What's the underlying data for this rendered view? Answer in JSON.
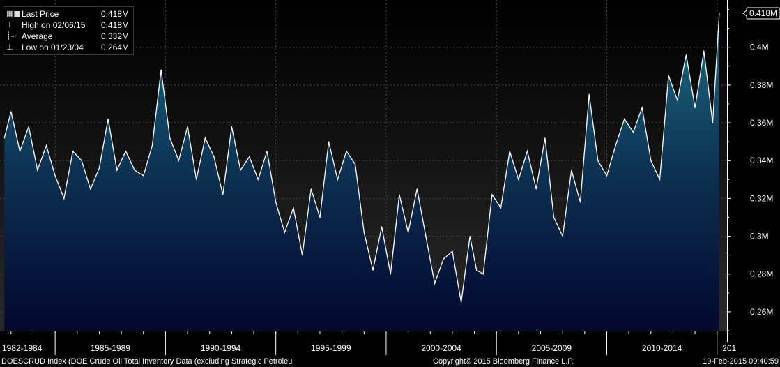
{
  "chart_data": {
    "type": "area",
    "series": [
      {
        "name": "Last Price",
        "x": [
          1982.7,
          1983.0,
          1983.4,
          1983.8,
          1984.2,
          1984.6,
          1985.0,
          1985.4,
          1985.8,
          1986.2,
          1986.6,
          1987.0,
          1987.4,
          1987.8,
          1988.2,
          1988.6,
          1989.0,
          1989.4,
          1989.8,
          1990.2,
          1990.6,
          1991.0,
          1991.4,
          1991.8,
          1992.2,
          1992.6,
          1993.0,
          1993.4,
          1993.8,
          1994.2,
          1994.6,
          1995.0,
          1995.4,
          1995.8,
          1996.2,
          1996.6,
          1997.0,
          1997.4,
          1997.8,
          1998.2,
          1998.6,
          1999.0,
          1999.4,
          1999.8,
          2000.2,
          2000.6,
          2001.0,
          2001.4,
          2001.8,
          2002.2,
          2002.6,
          2003.0,
          2003.4,
          2003.8,
          2004.1,
          2004.4,
          2004.8,
          2005.2,
          2005.6,
          2006.0,
          2006.4,
          2006.8,
          2007.2,
          2007.6,
          2008.0,
          2008.4,
          2008.8,
          2009.2,
          2009.6,
          2010.0,
          2010.4,
          2010.8,
          2011.2,
          2011.6,
          2012.0,
          2012.4,
          2012.8,
          2013.2,
          2013.6,
          2014.0,
          2014.4,
          2014.8,
          2015.1
        ],
        "values": [
          0.352,
          0.366,
          0.345,
          0.358,
          0.335,
          0.348,
          0.332,
          0.32,
          0.345,
          0.34,
          0.325,
          0.336,
          0.362,
          0.335,
          0.345,
          0.335,
          0.332,
          0.348,
          0.388,
          0.352,
          0.34,
          0.358,
          0.33,
          0.352,
          0.342,
          0.322,
          0.358,
          0.335,
          0.342,
          0.33,
          0.345,
          0.318,
          0.302,
          0.315,
          0.29,
          0.325,
          0.31,
          0.35,
          0.33,
          0.345,
          0.338,
          0.302,
          0.282,
          0.305,
          0.28,
          0.322,
          0.302,
          0.325,
          0.3,
          0.275,
          0.288,
          0.292,
          0.265,
          0.3,
          0.282,
          0.28,
          0.322,
          0.315,
          0.345,
          0.33,
          0.345,
          0.325,
          0.352,
          0.31,
          0.3,
          0.335,
          0.318,
          0.375,
          0.34,
          0.332,
          0.348,
          0.362,
          0.355,
          0.368,
          0.34,
          0.33,
          0.385,
          0.372,
          0.396,
          0.368,
          0.398,
          0.36,
          0.418
        ]
      }
    ],
    "ylim": [
      0.25,
      0.425
    ],
    "yticks": [
      "0.26M",
      "0.28M",
      "0.3M",
      "0.32M",
      "0.34M",
      "0.36M",
      "0.38M",
      "0.4M"
    ],
    "ytick_values": [
      0.26,
      0.28,
      0.3,
      0.32,
      0.34,
      0.36,
      0.38,
      0.4
    ],
    "xlim": [
      1982.5,
      2015.45
    ],
    "xtick_labels": [
      "1982-1984",
      "1985-1989",
      "1990-1994",
      "1995-1999",
      "2000-2004",
      "2005-2009",
      "2010-2014",
      "201"
    ],
    "xtick_label_centers": [
      1983.5,
      1987.5,
      1992.5,
      1997.5,
      2002.5,
      2007.5,
      2012.5,
      2015.55
    ],
    "xtick_boundaries": [
      1985,
      1990,
      1995,
      2000,
      2005,
      2010,
      2015
    ],
    "grid": true,
    "last_value": 0.418,
    "last_value_label": "0.418M",
    "colors": {
      "background_top": "#000000",
      "area_top": "#1c6f86",
      "area_mid": "#0d3152",
      "area_bottom": "#03072e",
      "line": "#ffffff",
      "grid": "#4a4a4a"
    }
  },
  "legend": {
    "rows": [
      {
        "icon": "square-icon",
        "label": "Last Price",
        "value": "0.418M"
      },
      {
        "icon": "high-marker-icon",
        "label": "High on 02/06/15",
        "value": "0.418M"
      },
      {
        "icon": "average-marker-icon",
        "label": "Average",
        "value": "0.332M"
      },
      {
        "icon": "low-marker-icon",
        "label": "Low on 01/23/04",
        "value": "0.264M"
      }
    ]
  },
  "footer": {
    "ticker": "DOESCRUD Index (DOE Crude Oil Total Inventory Data (excluding Strategic Petroleu",
    "copyright": "Copyright© 2015 Bloomberg Finance L.P.",
    "timestamp": "19-Feb-2015 09:40:59"
  }
}
